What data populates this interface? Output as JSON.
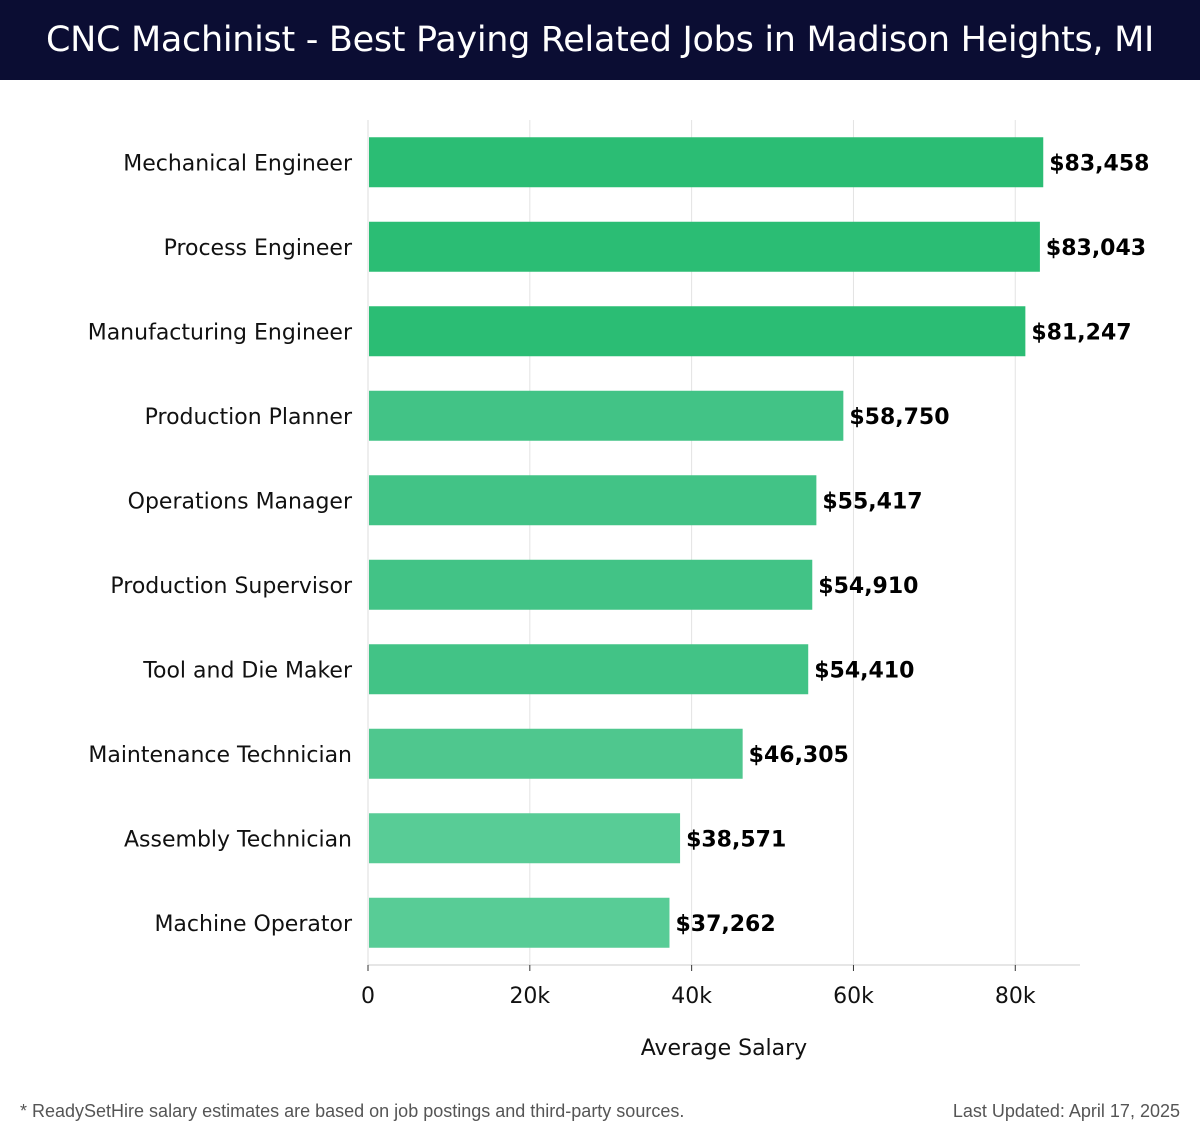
{
  "header": {
    "title": "CNC Machinist - Best Paying Related Jobs in Madison Heights, MI"
  },
  "chart_data": {
    "type": "bar",
    "orientation": "horizontal",
    "categories": [
      "Mechanical Engineer",
      "Process Engineer",
      "Manufacturing Engineer",
      "Production Planner",
      "Operations Manager",
      "Production Supervisor",
      "Tool and Die Maker",
      "Maintenance Technician",
      "Assembly Technician",
      "Machine Operator"
    ],
    "values": [
      83458,
      83043,
      81247,
      58750,
      55417,
      54910,
      54410,
      46305,
      38571,
      37262
    ],
    "value_labels": [
      "$83,458",
      "$83,043",
      "$81,247",
      "$58,750",
      "$55,417",
      "$54,910",
      "$54,410",
      "$46,305",
      "$38,571",
      "$37,262"
    ],
    "bar_colors": [
      "#2bbd74",
      "#2bbd74",
      "#2bbd74",
      "#42c386",
      "#42c386",
      "#42c386",
      "#42c386",
      "#4fc78e",
      "#58cc96",
      "#58cc96"
    ],
    "xlabel": "Average Salary",
    "ylabel": "",
    "xlim": [
      0,
      88000
    ],
    "x_ticks": [
      0,
      20000,
      40000,
      60000,
      80000
    ],
    "x_tick_labels": [
      "0",
      "20k",
      "40k",
      "60k",
      "80k"
    ],
    "grid": true
  },
  "footer": {
    "note": "* ReadySetHire salary estimates are based on job postings and third-party sources.",
    "updated": "Last Updated: April 17, 2025"
  }
}
